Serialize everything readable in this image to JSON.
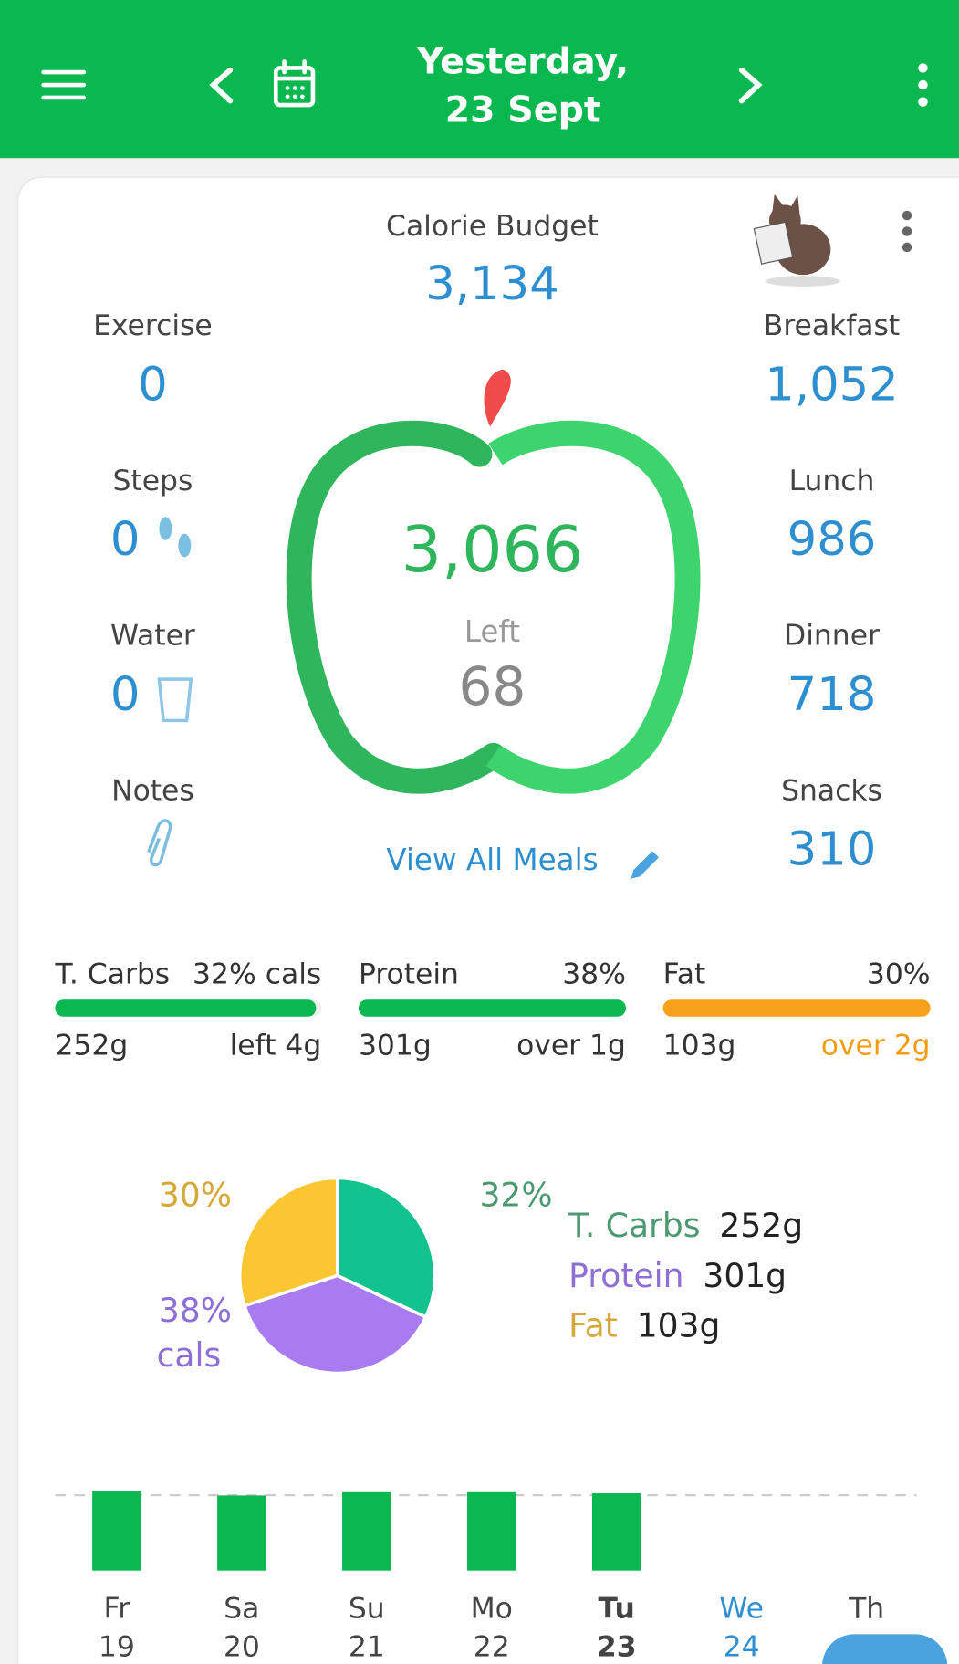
{
  "header": {
    "title_line1": "Yesterday,",
    "title_line2": "23 Sept"
  },
  "summary": {
    "budget_label": "Calorie Budget",
    "budget": "3,134",
    "left_stats": [
      {
        "label": "Exercise",
        "value": "0"
      },
      {
        "label": "Steps",
        "value": "0"
      },
      {
        "label": "Water",
        "value": "0"
      },
      {
        "label": "Notes"
      }
    ],
    "meals": [
      {
        "label": "Breakfast",
        "value": "1,052"
      },
      {
        "label": "Lunch",
        "value": "986"
      },
      {
        "label": "Dinner",
        "value": "718"
      },
      {
        "label": "Snacks",
        "value": "310"
      }
    ],
    "eaten": "3,066",
    "left_label": "Left",
    "left": "68",
    "view_all": "View All Meals"
  },
  "macros": [
    {
      "name": "T. Carbs",
      "percent": "32% cals",
      "grams": "252g",
      "status": "left 4g",
      "progress": 98,
      "color": "#0bb74f",
      "status_color": "#333333"
    },
    {
      "name": "Protein",
      "percent": "38%",
      "grams": "301g",
      "status": "over 1g",
      "progress": 100,
      "color": "#0bb74f",
      "status_color": "#333333"
    },
    {
      "name": "Fat",
      "percent": "30%",
      "grams": "103g",
      "status": "over 2g",
      "progress": 100,
      "color": "#f7a01b",
      "status_color": "#f39c12"
    }
  ],
  "chart_data": [
    {
      "type": "pie",
      "categories": [
        "T. Carbs",
        "Protein",
        "Fat"
      ],
      "values": [
        32,
        38,
        30
      ],
      "value_labels": [
        "32%",
        "38%",
        "30%"
      ],
      "unit_label": "cals",
      "colors": [
        "#13c38f",
        "#a87cf0",
        "#fcc633"
      ],
      "label_colors": [
        "#4d9a72",
        "#8e6fd6",
        "#d4a93a"
      ],
      "legend_values": [
        "252g",
        "301g",
        "103g"
      ]
    },
    {
      "type": "bar",
      "categories": [
        "Fr",
        "Sa",
        "Su",
        "Mo",
        "Tu",
        "We",
        "Th"
      ],
      "dates": [
        "19",
        "20",
        "21",
        "22",
        "23",
        "24",
        null
      ],
      "values": [
        3150,
        2980,
        3110,
        3110,
        3066,
        null,
        null
      ],
      "ylim": [
        0,
        3200
      ],
      "color": "#0bb74f"
    }
  ]
}
